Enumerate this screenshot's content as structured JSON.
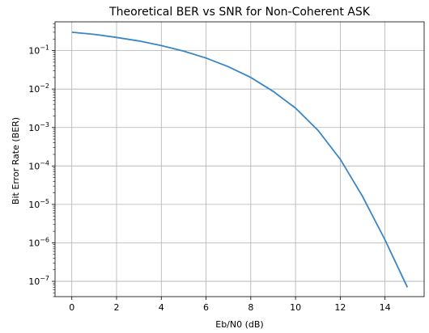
{
  "chart_data": {
    "type": "line",
    "title": "Theoretical BER vs SNR for Non-Coherent ASK",
    "xlabel": "Eb/N0 (dB)",
    "ylabel": "Bit Error Rate (BER)",
    "xlim": [
      -0.75,
      15.75
    ],
    "ylim": [
      4e-08,
      0.56
    ],
    "yscale": "log",
    "grid": true,
    "x_ticks": [
      0,
      2,
      4,
      6,
      8,
      10,
      12,
      14
    ],
    "x_tick_labels": [
      "0",
      "2",
      "4",
      "6",
      "8",
      "10",
      "12",
      "14"
    ],
    "y_ticks": [
      -1,
      -2,
      -3,
      -4,
      -5,
      -6,
      -7
    ],
    "y_tick_base": "10",
    "y_tick_exponents": [
      "−1",
      "−2",
      "−3",
      "−4",
      "−5",
      "−6",
      "−7"
    ],
    "line_color": "#3a86c4",
    "series": [
      {
        "x": [
          0,
          1,
          2,
          3,
          4,
          5,
          6,
          7,
          8,
          9,
          10,
          11,
          12,
          13,
          14,
          15
        ],
        "y": [
          0.3,
          0.265,
          0.22,
          0.178,
          0.135,
          0.097,
          0.064,
          0.038,
          0.02,
          0.0087,
          0.0032,
          0.00085,
          0.00015,
          1.6e-05,
          1.2e-06,
          7e-08
        ]
      }
    ]
  }
}
